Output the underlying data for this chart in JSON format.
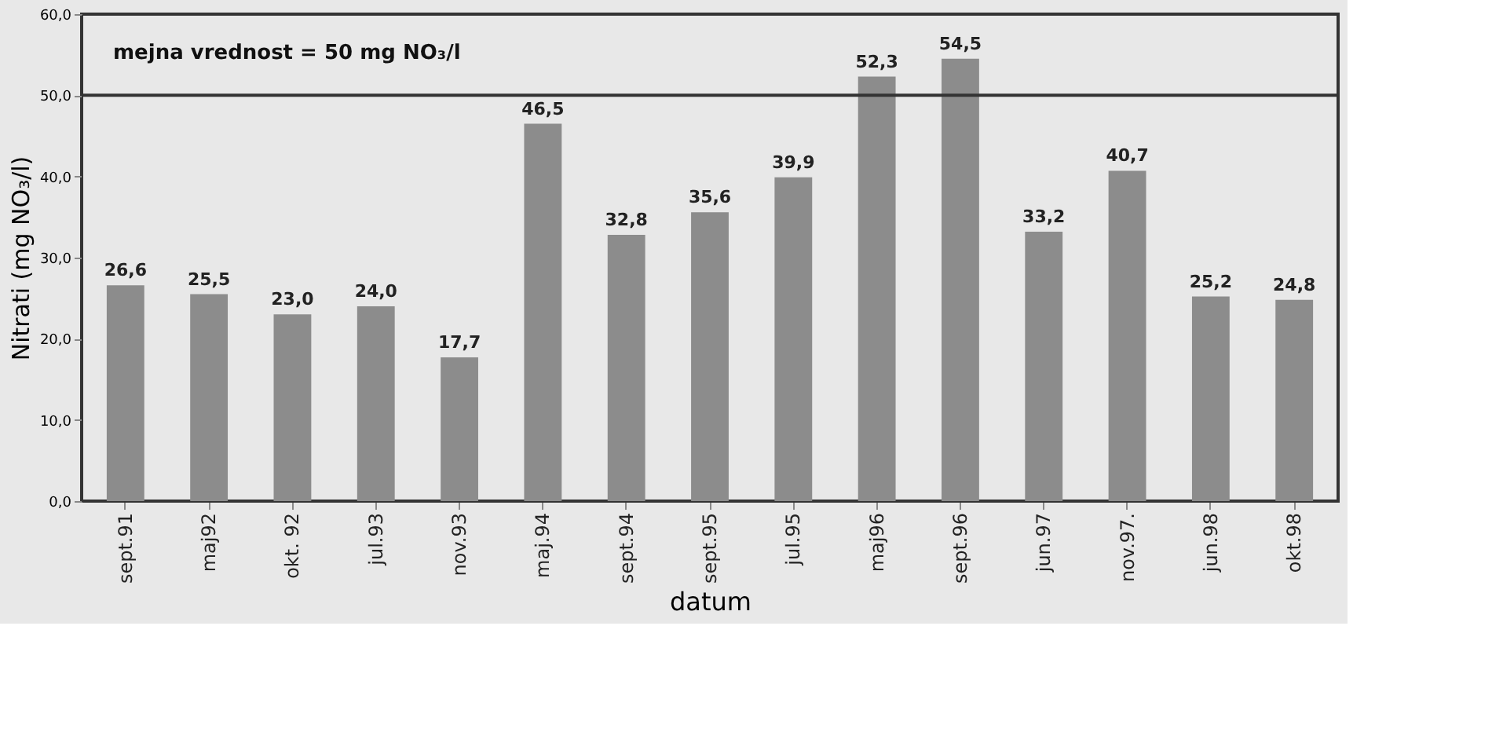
{
  "chart_data": {
    "type": "bar",
    "xlabel": "datum",
    "ylabel": "Nitrati (mg NO₃/l)",
    "categories": [
      "sept.91",
      "maj92",
      "okt. 92",
      "jul.93",
      "nov.93",
      "maj.94",
      "sept.94",
      "sept.95",
      "jul.95",
      "maj96",
      "sept.96",
      "jun.97",
      "nov.97.",
      "jun.98",
      "okt.98"
    ],
    "values": [
      26.6,
      25.5,
      23.0,
      24.0,
      17.7,
      46.5,
      32.8,
      35.6,
      39.9,
      52.3,
      54.5,
      33.2,
      40.7,
      25.2,
      24.8
    ],
    "value_labels": [
      "26,6",
      "25,5",
      "23,0",
      "24,0",
      "17,7",
      "46,5",
      "32,8",
      "35,6",
      "39,9",
      "52,3",
      "54,5",
      "33,2",
      "40,7",
      "25,2",
      "24,8"
    ],
    "color": "#8c8c8c",
    "ylim": [
      0,
      60
    ],
    "yticks": [
      {
        "value": 0,
        "label": "0,0"
      },
      {
        "value": 10,
        "label": "10,0"
      },
      {
        "value": 20,
        "label": "20,0"
      },
      {
        "value": 30,
        "label": "30,0"
      },
      {
        "value": 40,
        "label": "40,0"
      },
      {
        "value": 50,
        "label": "50,0"
      },
      {
        "value": 60,
        "label": "60,0"
      }
    ],
    "ref_lines": [
      {
        "axis": "y",
        "value": 50,
        "label": "mejna vrednost = 50 mg NO₃/l",
        "color": "#333333"
      }
    ],
    "grid": false
  }
}
